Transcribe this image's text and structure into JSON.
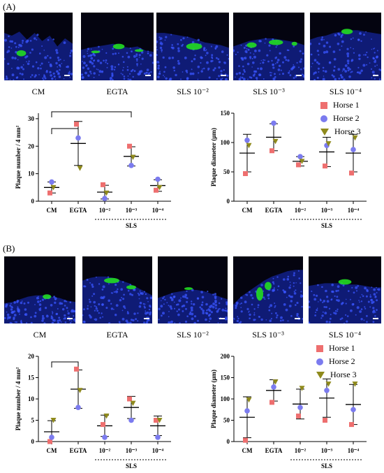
{
  "figure": {
    "panelA": {
      "label": "(A)",
      "images": [
        {
          "caption": "CM"
        },
        {
          "caption": "EGTA"
        },
        {
          "caption": "SLS 10⁻²"
        },
        {
          "caption": "SLS 10⁻³"
        },
        {
          "caption": "SLS 10⁻⁴"
        }
      ]
    },
    "panelB": {
      "label": "(B)",
      "images": [
        {
          "caption": "CM"
        },
        {
          "caption": "EGTA"
        },
        {
          "caption": "SLS 10⁻²"
        },
        {
          "caption": "SLS 10⁻³"
        },
        {
          "caption": "SLS 10⁻⁴"
        }
      ]
    },
    "legend": [
      "Horse 1",
      "Horse 2",
      "Horse 3"
    ],
    "colors": {
      "horse1": "#ee6f6f",
      "horse2": "#7b7bef",
      "horse3": "#8f8a1c",
      "stain_green": "#22dd22",
      "stain_blue": "#1a2fc8"
    }
  },
  "chart_data": [
    {
      "id": "A-number",
      "type": "scatter",
      "categories": [
        "CM",
        "EGTA",
        "10⁻²",
        "10⁻³",
        "10⁻⁴"
      ],
      "group_label": "SLS",
      "ylabel": "Plaque number / 4 mm²",
      "yticks": [
        0,
        10,
        20,
        30
      ],
      "ylim": [
        0,
        32
      ],
      "series": [
        {
          "name": "Horse 1",
          "values": [
            3,
            28,
            6,
            20,
            4
          ]
        },
        {
          "name": "Horse 2",
          "values": [
            7,
            23,
            1,
            13,
            8
          ]
        },
        {
          "name": "Horse 3",
          "values": [
            5,
            12,
            3,
            16,
            5
          ]
        }
      ],
      "mean": [
        5,
        21,
        3.3,
        16.3,
        5.7
      ],
      "sd": [
        2,
        8,
        2.5,
        3.5,
        2.1
      ],
      "brackets": [
        [
          0,
          1
        ],
        [
          0,
          3
        ]
      ]
    },
    {
      "id": "A-diameter",
      "type": "scatter",
      "categories": [
        "CM",
        "EGTA",
        "10⁻²",
        "10⁻³",
        "10⁻⁴"
      ],
      "group_label": "SLS",
      "ylabel": "Plaque diameter (μm)",
      "yticks": [
        0,
        50,
        100,
        150
      ],
      "ylim": [
        0,
        150
      ],
      "series": [
        {
          "name": "Horse 1",
          "values": [
            47,
            86,
            62,
            60,
            48
          ]
        },
        {
          "name": "Horse 2",
          "values": [
            104,
            133,
            76,
            95,
            88
          ]
        },
        {
          "name": "Horse 3",
          "values": [
            95,
            102,
            68,
            98,
            108
          ]
        }
      ],
      "mean": [
        82,
        109,
        68,
        84,
        82
      ],
      "sd": [
        32,
        23,
        8,
        25,
        32
      ],
      "brackets": []
    },
    {
      "id": "B-number",
      "type": "scatter",
      "categories": [
        "CM",
        "EGTA",
        "10⁻²",
        "10⁻³",
        "10⁻⁴"
      ],
      "group_label": "SLS",
      "ylabel": "Plaque number / 4 mm²",
      "yticks": [
        0,
        5,
        10,
        15,
        20
      ],
      "ylim": [
        0,
        20
      ],
      "series": [
        {
          "name": "Horse 1",
          "values": [
            0,
            17,
            4,
            10,
            5
          ]
        },
        {
          "name": "Horse 2",
          "values": [
            1,
            8,
            1,
            5,
            1
          ]
        },
        {
          "name": "Horse 3",
          "values": [
            5,
            12,
            6,
            9,
            5
          ]
        }
      ],
      "mean": [
        2.3,
        12.3,
        3.7,
        8,
        3.7
      ],
      "sd": [
        2.6,
        4.5,
        2.5,
        2.6,
        2.3
      ],
      "brackets": [
        [
          0,
          1
        ]
      ]
    },
    {
      "id": "B-diameter",
      "type": "scatter",
      "categories": [
        "CM",
        "EGTA",
        "10⁻²",
        "10⁻³",
        "10⁻⁴"
      ],
      "group_label": "SLS",
      "ylabel": "Plaque diameter (μm)",
      "yticks": [
        0,
        50,
        100,
        150,
        200
      ],
      "ylim": [
        0,
        200
      ],
      "series": [
        {
          "name": "Horse 1",
          "values": [
            3,
            92,
            60,
            50,
            40
          ]
        },
        {
          "name": "Horse 2",
          "values": [
            72,
            128,
            80,
            120,
            75
          ]
        },
        {
          "name": "Horse 3",
          "values": [
            98,
            140,
            125,
            135,
            135
          ]
        }
      ],
      "mean": [
        57,
        120,
        88,
        102,
        87
      ],
      "sd": [
        48,
        25,
        35,
        45,
        47
      ],
      "brackets": []
    }
  ]
}
